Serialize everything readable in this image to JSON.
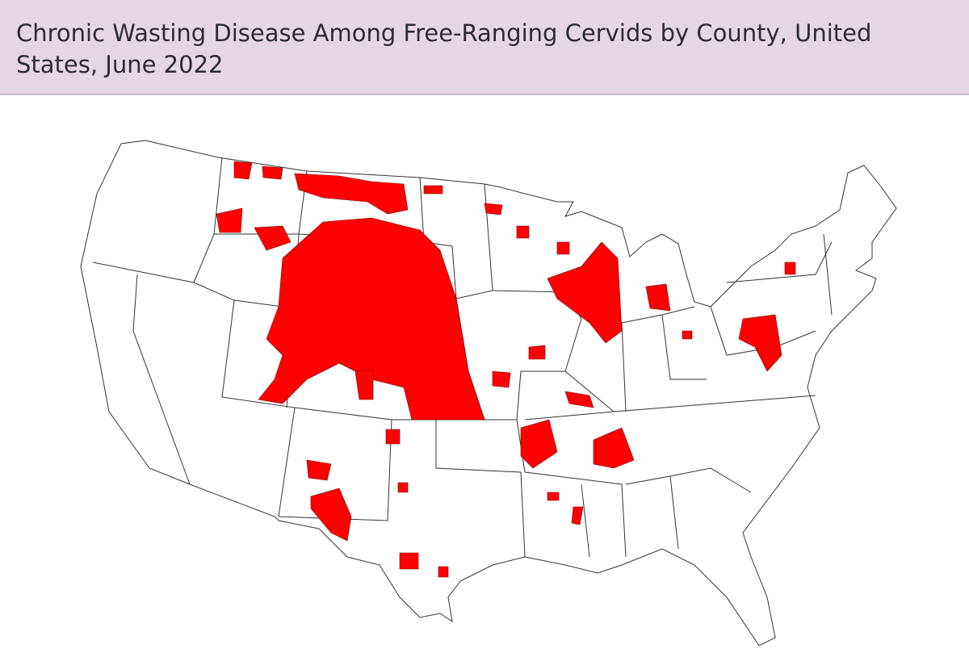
{
  "header": {
    "title": "Chronic Wasting Disease Among Free-Ranging Cervids by County, United States, June 2022"
  }
}
